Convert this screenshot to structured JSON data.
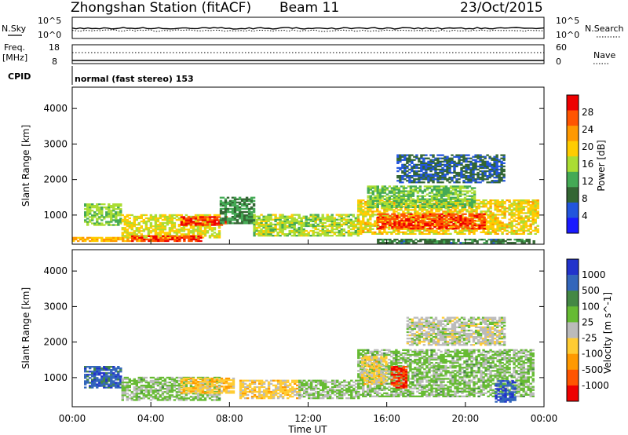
{
  "header": {
    "station": "Zhongshan Station (fitACF)",
    "beam": "Beam 11",
    "date": "23/Oct/2015"
  },
  "panels": {
    "nsky_label": "N.Sky",
    "nsky_ticks": [
      "10^5",
      "10^0"
    ],
    "nsearch_label": "N.Search",
    "nsearch_ticks": [
      "10^5",
      "10^0"
    ],
    "freq_label_1": "Freq.",
    "freq_label_2": "[MHz]",
    "freq_ticks": [
      "18",
      "8"
    ],
    "nave_label": "Nave",
    "nave_ticks": [
      "60",
      "0"
    ],
    "cpid_label": "CPID",
    "cpid_text": "normal (fast stereo) 153"
  },
  "colors": {
    "power": [
      "#1a1aff",
      "#2255dd",
      "#336633",
      "#44aa55",
      "#aadd33",
      "#ffcc00",
      "#ff9900",
      "#ff5500",
      "#ee0000"
    ],
    "velocity": [
      "#ee0000",
      "#ff5500",
      "#ff9900",
      "#ffcc33",
      "#bbbbbb",
      "#66bb33",
      "#448844",
      "#3366bb",
      "#2233cc"
    ]
  },
  "chart_data": [
    {
      "type": "heatmap",
      "name": "power",
      "ylabel": "Slant Range [km]",
      "xlabel": "Time UT",
      "x_ticks": [
        "00:00",
        "04:00",
        "08:00",
        "12:00",
        "16:00",
        "20:00",
        "00:00"
      ],
      "x_range_hours": [
        0,
        24
      ],
      "y_ticks": [
        1000,
        2000,
        3000,
        4000
      ],
      "ylim_km": [
        180,
        4600
      ],
      "colorbar": {
        "label": "Power [dB]",
        "ticks": [
          "28",
          "24",
          "20",
          "16",
          "12",
          "8",
          "4"
        ],
        "range": [
          0,
          30
        ]
      },
      "regions": [
        {
          "t0": 0.0,
          "t1": 3.5,
          "r0": 250,
          "r1": 350,
          "value": 20
        },
        {
          "t0": 0.6,
          "t1": 2.5,
          "r0": 700,
          "r1": 1300,
          "value": 14
        },
        {
          "t0": 2.5,
          "t1": 7.5,
          "r0": 350,
          "r1": 1000,
          "value": 17
        },
        {
          "t0": 3.0,
          "t1": 6.5,
          "r0": 250,
          "r1": 400,
          "value": 26
        },
        {
          "t0": 5.5,
          "t1": 7.8,
          "r0": 700,
          "r1": 950,
          "value": 27
        },
        {
          "t0": 7.5,
          "t1": 9.2,
          "r0": 750,
          "r1": 1500,
          "value": 10
        },
        {
          "t0": 9.2,
          "t1": 14.5,
          "r0": 400,
          "r1": 1000,
          "value": 15
        },
        {
          "t0": 14.5,
          "t1": 23.7,
          "r0": 450,
          "r1": 1400,
          "value": 18
        },
        {
          "t0": 15.5,
          "t1": 21.0,
          "r0": 600,
          "r1": 1050,
          "value": 26
        },
        {
          "t0": 15.0,
          "t1": 20.5,
          "r0": 1200,
          "r1": 1800,
          "value": 13
        },
        {
          "t0": 16.5,
          "t1": 22.0,
          "r0": 1900,
          "r1": 2700,
          "value": 7
        },
        {
          "t0": 15.5,
          "t1": 23.5,
          "r0": 200,
          "r1": 300,
          "value": 9
        }
      ]
    },
    {
      "type": "heatmap",
      "name": "velocity",
      "ylabel": "Slant Range [km]",
      "xlabel": "Time UT",
      "x_ticks": [
        "00:00",
        "04:00",
        "08:00",
        "12:00",
        "16:00",
        "20:00",
        "00:00"
      ],
      "x_range_hours": [
        0,
        24
      ],
      "y_ticks": [
        1000,
        2000,
        3000,
        4000
      ],
      "ylim_km": [
        180,
        4600
      ],
      "colorbar": {
        "label": "Velocity [m s^-1]",
        "ticks": [
          "1000",
          "500",
          "100",
          "25",
          "-25",
          "-100",
          "-500",
          "-1000"
        ],
        "range": [
          -1200,
          1200
        ]
      },
      "regions": [
        {
          "t0": 0.6,
          "t1": 2.5,
          "r0": 700,
          "r1": 1300,
          "value": 800
        },
        {
          "t0": 2.5,
          "t1": 7.5,
          "r0": 350,
          "r1": 1000,
          "value": 200
        },
        {
          "t0": 5.5,
          "t1": 8.2,
          "r0": 550,
          "r1": 1000,
          "value": -300
        },
        {
          "t0": 8.5,
          "t1": 11.5,
          "r0": 400,
          "r1": 900,
          "value": -250
        },
        {
          "t0": 11.5,
          "t1": 14.5,
          "r0": 400,
          "r1": 900,
          "value": 150
        },
        {
          "t0": 14.5,
          "t1": 23.5,
          "r0": 450,
          "r1": 1800,
          "value": 200
        },
        {
          "t0": 14.7,
          "t1": 16.0,
          "r0": 800,
          "r1": 1600,
          "value": -200
        },
        {
          "t0": 16.2,
          "t1": 17.0,
          "r0": 700,
          "r1": 1300,
          "value": -900
        },
        {
          "t0": 17.0,
          "t1": 22.0,
          "r0": 1900,
          "r1": 2700,
          "value": 0
        },
        {
          "t0": 21.5,
          "t1": 22.5,
          "r0": 300,
          "r1": 900,
          "value": 900
        }
      ]
    }
  ]
}
